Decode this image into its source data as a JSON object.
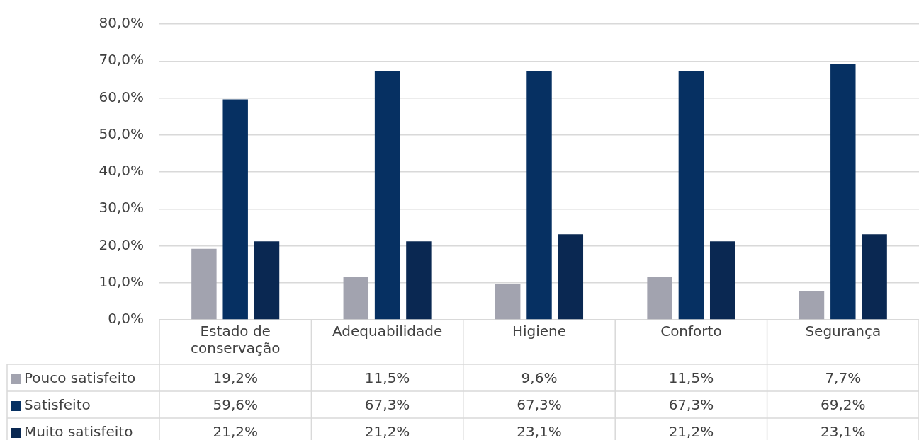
{
  "chart_data": {
    "type": "bar",
    "categories": [
      "Estado de conservação",
      "Adequabilidade",
      "Higiene",
      "Conforto",
      "Segurança"
    ],
    "series": [
      {
        "name": "Pouco satisfeito",
        "color": "#a2a3af",
        "values": [
          19.2,
          11.5,
          9.6,
          11.5,
          7.7
        ],
        "value_labels": [
          "19,2%",
          "11,5%",
          "9,6%",
          "11,5%",
          "7,7%"
        ]
      },
      {
        "name": "Satisfeito",
        "color": "#063062",
        "values": [
          59.6,
          67.3,
          67.3,
          67.3,
          69.2
        ],
        "value_labels": [
          "59,6%",
          "67,3%",
          "67,3%",
          "67,3%",
          "69,2%"
        ]
      },
      {
        "name": "Muito satisfeito",
        "color": "#0a2852",
        "values": [
          21.2,
          21.2,
          23.1,
          21.2,
          23.1
        ],
        "value_labels": [
          "21,2%",
          "21,2%",
          "23,1%",
          "21,2%",
          "23,1%"
        ]
      }
    ],
    "ylim": [
      0,
      80
    ],
    "yticks": [
      {
        "value": 0,
        "label": "0,0%"
      },
      {
        "value": 10,
        "label": "10,0%"
      },
      {
        "value": 20,
        "label": "20,0%"
      },
      {
        "value": 30,
        "label": "30,0%"
      },
      {
        "value": 40,
        "label": "40,0%"
      },
      {
        "value": 50,
        "label": "50,0%"
      },
      {
        "value": 60,
        "label": "60,0%"
      },
      {
        "value": 70,
        "label": "70,0%"
      },
      {
        "value": 80,
        "label": "80,0%"
      }
    ],
    "grid": "y",
    "legend": "bottom"
  }
}
